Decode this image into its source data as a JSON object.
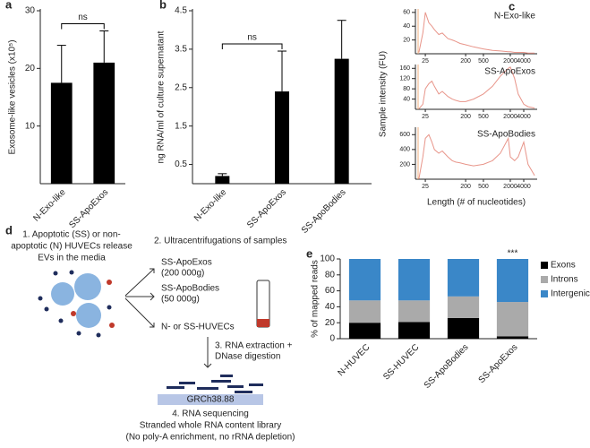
{
  "chart_data": [
    {
      "type": "bar",
      "panel": "a",
      "ylabel": "Exosome-like vesicles (x10⁵)",
      "categories": [
        "N-Exo-like",
        "SS-ApoExos"
      ],
      "values": [
        17.5,
        21
      ],
      "errors": [
        6.5,
        5.5
      ],
      "color": "#000000",
      "ylim": [
        0,
        30
      ],
      "yticks": [
        10,
        20,
        30
      ],
      "annotation": {
        "text": "ns",
        "between": [
          "N-Exo-like",
          "SS-ApoExos"
        ]
      }
    },
    {
      "type": "bar",
      "panel": "b",
      "ylabel": "ng RNA/ml of culture supernatant",
      "categories": [
        "N-Exo-like",
        "SS-ApoExos",
        "SS-ApoBodies"
      ],
      "values": [
        0.2,
        2.4,
        3.25
      ],
      "errors": [
        0.06,
        1.05,
        1.0
      ],
      "color": "#000000",
      "ylim": [
        0,
        4.5
      ],
      "yticks": [
        0.5,
        1.5,
        2.5,
        3.5,
        4.5
      ],
      "annotation": {
        "text": "ns",
        "between": [
          "N-Exo-like",
          "SS-ApoExos"
        ]
      }
    },
    {
      "type": "line",
      "panel": "c",
      "ylabel": "Sample intensity (FU)",
      "xlabel": "Length (# of nucleotides)",
      "log_x": true,
      "color": "#e8958a",
      "xlim": [
        15,
        8000
      ],
      "xticks": [
        25,
        200,
        500,
        2000,
        4000
      ],
      "subplots": [
        {
          "name": "N-Exo-like",
          "ylim": [
            0,
            65
          ],
          "yticks": [
            20,
            40,
            60
          ],
          "x": [
            18,
            22,
            25,
            30,
            35,
            40,
            50,
            60,
            80,
            100,
            120,
            150,
            200,
            300,
            500,
            800,
            1200,
            1800,
            2000,
            2500,
            3000,
            4000,
            5000,
            7000
          ],
          "values": [
            2,
            30,
            60,
            45,
            40,
            35,
            28,
            30,
            22,
            20,
            18,
            15,
            13,
            10,
            7,
            5,
            4,
            3,
            3,
            2,
            2,
            2,
            1,
            1
          ]
        },
        {
          "name": "SS-ApoExos",
          "ylim": [
            0,
            175
          ],
          "yticks": [
            40,
            80,
            120,
            160
          ],
          "x": [
            18,
            22,
            25,
            30,
            35,
            40,
            50,
            60,
            80,
            100,
            120,
            150,
            200,
            300,
            500,
            800,
            1200,
            1800,
            2000,
            2500,
            3000,
            4000,
            5000,
            7000
          ],
          "values": [
            2,
            20,
            80,
            100,
            110,
            90,
            60,
            70,
            50,
            40,
            35,
            30,
            30,
            40,
            60,
            90,
            130,
            160,
            165,
            120,
            60,
            20,
            10,
            5
          ]
        },
        {
          "name": "SS-ApoBodies",
          "ylim": [
            0,
            700
          ],
          "yticks": [
            200,
            400,
            600
          ],
          "x": [
            18,
            22,
            25,
            30,
            35,
            40,
            50,
            60,
            80,
            100,
            120,
            150,
            200,
            300,
            500,
            800,
            1200,
            1800,
            2000,
            2500,
            3000,
            4000,
            5000,
            7000
          ],
          "values": [
            5,
            300,
            550,
            600,
            500,
            400,
            350,
            380,
            300,
            250,
            230,
            220,
            200,
            180,
            200,
            250,
            350,
            550,
            300,
            250,
            300,
            500,
            200,
            50
          ]
        }
      ]
    },
    {
      "type": "stacked_bar",
      "panel": "e",
      "ylabel": "% of mapped  reads",
      "categories": [
        "N-HUVEC",
        "SS-HUVEC",
        "SS-ApoBodies",
        "SS-ApoExos"
      ],
      "series": [
        {
          "name": "Exons",
          "color": "#000000",
          "values": [
            20,
            21,
            26,
            3
          ]
        },
        {
          "name": "Introns",
          "color": "#aaaaaa",
          "values": [
            28,
            27,
            27,
            43
          ]
        },
        {
          "name": "Intergenic",
          "color": "#3a87c8",
          "values": [
            52,
            52,
            47,
            54
          ]
        }
      ],
      "ylim": [
        0,
        100
      ],
      "yticks": [
        0,
        20,
        40,
        60,
        80,
        100
      ],
      "annotation": {
        "text": "***",
        "category": "SS-ApoExos"
      }
    }
  ],
  "diagram": {
    "panel": "d",
    "step1": [
      "1. Apoptotic (SS) or non-",
      "apoptotic (N) HUVECs release",
      "EVs in the media"
    ],
    "step2": "2. Ultracentrifugations of samples",
    "fractions": [
      [
        "SS-ApoExos",
        "(200 000g)"
      ],
      [
        "SS-ApoBodies",
        "(50 000g)"
      ],
      [
        "N- or SS-HUVECs"
      ]
    ],
    "step3": [
      "3. RNA extraction +",
      "DNase digestion"
    ],
    "genome": "GRCh38.88",
    "step4": [
      "4. RNA sequencing",
      "Stranded whole RNA content library",
      "(No poly-A enrichment, no rRNA depletion)"
    ]
  }
}
